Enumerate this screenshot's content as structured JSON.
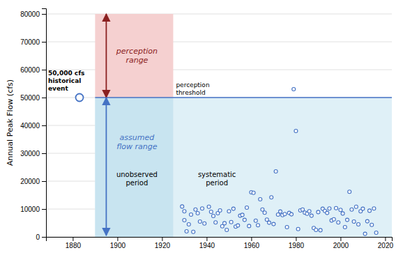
{
  "chart_data": {
    "type": "scatter",
    "ylabel": "Annual Peak Flow (cfs)",
    "xlim": [
      1868,
      2023
    ],
    "ylim": [
      0,
      82000
    ],
    "xticks": [
      1880,
      1900,
      1920,
      1940,
      1960,
      1980,
      2000,
      2020
    ],
    "yticks": [
      0,
      10000,
      20000,
      30000,
      40000,
      50000,
      60000,
      70000,
      80000
    ],
    "grid": true,
    "color": "#4472C4",
    "marker": "circle",
    "x": [
      1929,
      1930,
      1931,
      1932,
      1933,
      1934,
      1935,
      1936,
      1937,
      1938,
      1939,
      1930,
      1941,
      1942,
      1943,
      1944,
      1945,
      1946,
      1947,
      1948,
      1949,
      1950,
      1951,
      1952,
      1953,
      1954,
      1955,
      1956,
      1957,
      1958,
      1959,
      1960,
      1961,
      1962,
      1963,
      1964,
      1965,
      1966,
      1967,
      1968,
      1969,
      1970,
      1971,
      1972,
      1973,
      1974,
      1975,
      1976,
      1977,
      1978,
      1979,
      1980,
      1981,
      1982,
      1983,
      1984,
      1985,
      1986,
      1987,
      1988,
      1989,
      1990,
      1991,
      1992,
      1993,
      1994,
      1995,
      1996,
      1997,
      1998,
      1999,
      2000,
      2001,
      2002,
      2003,
      2004,
      2005,
      2006,
      2007,
      2008,
      2009,
      2010,
      2011,
      2012,
      2013,
      2014,
      2015,
      2016
    ],
    "values": [
      10900,
      9200,
      2000,
      4500,
      8000,
      1800,
      9800,
      8500,
      5500,
      10200,
      4800,
      6000,
      10800,
      9000,
      7500,
      5200,
      8500,
      9500,
      3800,
      4900,
      2500,
      9200,
      5300,
      10100,
      3700,
      4100,
      7600,
      7900,
      6100,
      10500,
      3900,
      16000,
      15800,
      5800,
      4200,
      13500,
      9800,
      8700,
      6200,
      5100,
      14200,
      4600,
      23500,
      8000,
      9100,
      7800,
      8200,
      3500,
      8600,
      8100,
      53000,
      38000,
      2800,
      9500,
      9800,
      8700,
      8300,
      9200,
      7600,
      3200,
      2500,
      8900,
      2400,
      10100,
      9300,
      8600,
      10200,
      5900,
      6300,
      10300,
      5200,
      9700,
      8400,
      3500,
      6100,
      16200,
      9800,
      5500,
      10800,
      4500,
      9200,
      10100,
      1100,
      5600,
      9400,
      4300,
      10200,
      1500
    ],
    "historical_event": {
      "x": 1883,
      "value": 50000,
      "label": "50,000 cfs\nhistorical\nevent"
    },
    "perception_threshold": {
      "value": 50000,
      "label": "perception\nthreshold",
      "color": "#4472C4"
    },
    "unobserved_period": {
      "x": [
        1890,
        1925
      ],
      "label": "unobserved\nperiod",
      "color": "#c8e4f0"
    },
    "systematic_period": {
      "end": 2023,
      "label": "systematic\nperiod",
      "color": "#dff0f7"
    },
    "perception_range": {
      "y": [
        50000,
        80000
      ],
      "label": "perception\nrange",
      "color": "#8B2020",
      "fill": "#f5d0d0"
    },
    "assumed_flow_range": {
      "y": [
        0,
        50000
      ],
      "label": "assumed\nflow range",
      "color": "#4472C4"
    }
  }
}
